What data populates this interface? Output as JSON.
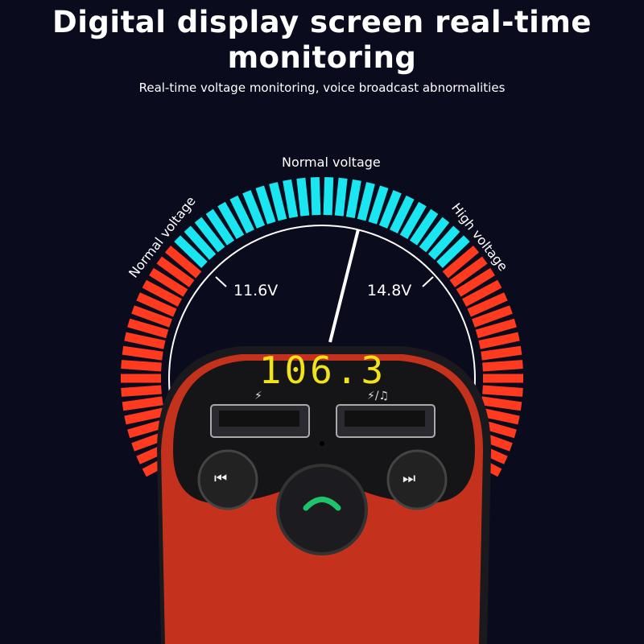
{
  "header": {
    "title_line1": "Digital display screen real-time",
    "title_line2": "monitoring",
    "subtitle": "Real-time voltage monitoring, voice broadcast abnormalities"
  },
  "gauge": {
    "label_top": "Normal voltage",
    "label_left": "Normal voltage",
    "label_right": "High voltage",
    "low_threshold": "11.6V",
    "high_threshold": "14.8V",
    "colors": {
      "normal": "#19e6f0",
      "abnormal": "#ff3a1e",
      "background": "#0a0c1e"
    }
  },
  "device": {
    "display": "106.3",
    "display_color": "#f2e21a",
    "port_left_icon": "lightning-icon",
    "port_right_icon": "lightning-music-icon",
    "buttons": [
      "previous-track-icon",
      "phone-call-icon",
      "next-track-icon"
    ],
    "body_color": "#c4321e",
    "call_icon_color": "#1ec46a"
  }
}
